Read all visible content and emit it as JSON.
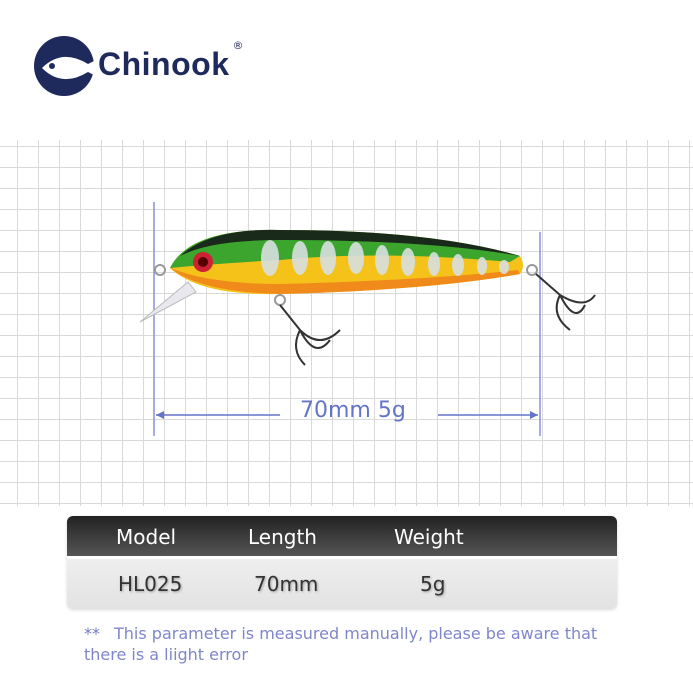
{
  "brand": {
    "name": "Chinook",
    "registered": "®",
    "color": "#1f2a5c"
  },
  "measurement": {
    "label": "70mm 5g",
    "color": "#6474c7"
  },
  "table": {
    "headers": [
      "Model",
      "Length",
      "Weight"
    ],
    "rows": [
      [
        "HL025",
        "70mm",
        "5g"
      ]
    ]
  },
  "note": {
    "marker": "**",
    "text": "This parameter is measured manually, please be aware that there is a liight error"
  }
}
